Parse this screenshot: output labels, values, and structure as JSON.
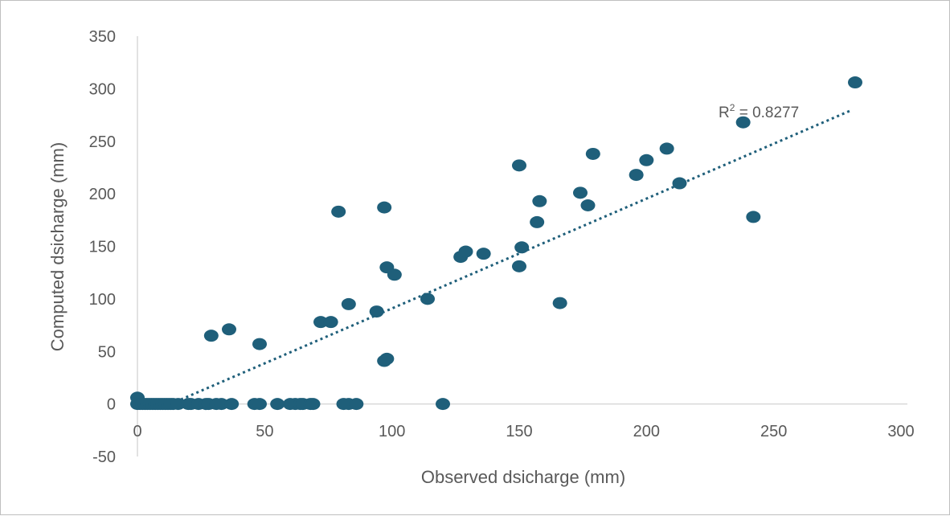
{
  "chart_data": {
    "type": "scatter",
    "title": "",
    "xlabel": "Observed dsicharge (mm)",
    "ylabel": "Computed dsicharge (mm)",
    "xlim": [
      0,
      300
    ],
    "ylim": [
      -50,
      350
    ],
    "x_ticks": [
      0,
      50,
      100,
      150,
      200,
      250,
      300
    ],
    "y_ticks": [
      -50,
      0,
      50,
      100,
      150,
      200,
      250,
      300,
      350
    ],
    "x_tick_labels": [
      "0",
      "50",
      "100",
      "150",
      "200",
      "250",
      "300"
    ],
    "y_tick_labels": [
      "-50",
      "0",
      "50",
      "100",
      "150",
      "200",
      "250",
      "300",
      "350"
    ],
    "grid": false,
    "legend": "none",
    "point_color": "#1f5f7a",
    "trendline": {
      "type": "linear",
      "style": "dotted",
      "color": "#1f5f7a",
      "from": [
        13,
        0
      ],
      "to": [
        280,
        279
      ],
      "annotation_base": "R",
      "annotation_sup": "2",
      "annotation_value": " = 0.8277"
    },
    "points": [
      {
        "x": 0,
        "y": 6
      },
      {
        "x": 0,
        "y": 0
      },
      {
        "x": 1,
        "y": 0
      },
      {
        "x": 2,
        "y": 0
      },
      {
        "x": 3,
        "y": 0
      },
      {
        "x": 4,
        "y": 0
      },
      {
        "x": 5,
        "y": 0
      },
      {
        "x": 6,
        "y": 0
      },
      {
        "x": 7,
        "y": 0
      },
      {
        "x": 8,
        "y": 0
      },
      {
        "x": 9,
        "y": 0
      },
      {
        "x": 10,
        "y": 0
      },
      {
        "x": 11,
        "y": 0
      },
      {
        "x": 12,
        "y": 0
      },
      {
        "x": 13,
        "y": 0
      },
      {
        "x": 14,
        "y": 0
      },
      {
        "x": 16,
        "y": 0
      },
      {
        "x": 20,
        "y": 0
      },
      {
        "x": 21,
        "y": 0
      },
      {
        "x": 24,
        "y": 0
      },
      {
        "x": 27,
        "y": 0
      },
      {
        "x": 28,
        "y": 0
      },
      {
        "x": 31,
        "y": 0
      },
      {
        "x": 33,
        "y": 0
      },
      {
        "x": 37,
        "y": 0
      },
      {
        "x": 46,
        "y": 0
      },
      {
        "x": 48,
        "y": 0
      },
      {
        "x": 55,
        "y": 0
      },
      {
        "x": 60,
        "y": 0
      },
      {
        "x": 62,
        "y": 0
      },
      {
        "x": 64,
        "y": 0
      },
      {
        "x": 65,
        "y": 0
      },
      {
        "x": 68,
        "y": 0
      },
      {
        "x": 69,
        "y": 0
      },
      {
        "x": 81,
        "y": 0
      },
      {
        "x": 83,
        "y": 0
      },
      {
        "x": 86,
        "y": 0
      },
      {
        "x": 120,
        "y": 0
      },
      {
        "x": 29,
        "y": 65
      },
      {
        "x": 36,
        "y": 71
      },
      {
        "x": 48,
        "y": 57
      },
      {
        "x": 72,
        "y": 78
      },
      {
        "x": 76,
        "y": 78
      },
      {
        "x": 79,
        "y": 183
      },
      {
        "x": 83,
        "y": 95
      },
      {
        "x": 94,
        "y": 88
      },
      {
        "x": 97,
        "y": 41
      },
      {
        "x": 98,
        "y": 43
      },
      {
        "x": 97,
        "y": 187
      },
      {
        "x": 98,
        "y": 130
      },
      {
        "x": 101,
        "y": 123
      },
      {
        "x": 114,
        "y": 100
      },
      {
        "x": 127,
        "y": 140
      },
      {
        "x": 129,
        "y": 145
      },
      {
        "x": 136,
        "y": 143
      },
      {
        "x": 150,
        "y": 227
      },
      {
        "x": 150,
        "y": 131
      },
      {
        "x": 151,
        "y": 149
      },
      {
        "x": 157,
        "y": 173
      },
      {
        "x": 158,
        "y": 193
      },
      {
        "x": 166,
        "y": 96
      },
      {
        "x": 174,
        "y": 201
      },
      {
        "x": 177,
        "y": 189
      },
      {
        "x": 179,
        "y": 238
      },
      {
        "x": 196,
        "y": 218
      },
      {
        "x": 200,
        "y": 232
      },
      {
        "x": 208,
        "y": 243
      },
      {
        "x": 213,
        "y": 210
      },
      {
        "x": 238,
        "y": 268
      },
      {
        "x": 242,
        "y": 178
      },
      {
        "x": 282,
        "y": 306
      }
    ]
  }
}
